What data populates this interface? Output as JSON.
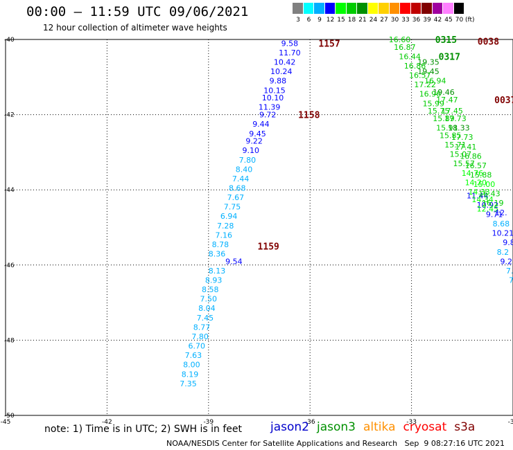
{
  "header": {
    "title": "00:00 — 11:59 UTC 09/06/2021",
    "subtitle": "12 hour collection of altimeter wave heights"
  },
  "legend": {
    "unit": "(ft)",
    "bins": [
      {
        "label": "3",
        "color": "#808080"
      },
      {
        "label": "6",
        "color": "#00ffff"
      },
      {
        "label": "9",
        "color": "#00b0ff"
      },
      {
        "label": "12",
        "color": "#0000ff"
      },
      {
        "label": "15",
        "color": "#00ff00"
      },
      {
        "label": "18",
        "color": "#00cc00"
      },
      {
        "label": "21",
        "color": "#009000"
      },
      {
        "label": "24",
        "color": "#ffff00"
      },
      {
        "label": "27",
        "color": "#ffd000"
      },
      {
        "label": "30",
        "color": "#ff9000"
      },
      {
        "label": "33",
        "color": "#ff0000"
      },
      {
        "label": "36",
        "color": "#c00000"
      },
      {
        "label": "39",
        "color": "#800000"
      },
      {
        "label": "42",
        "color": "#a000a0"
      },
      {
        "label": "45",
        "color": "#ff80ff"
      },
      {
        "label": "70",
        "color": "#000000"
      }
    ]
  },
  "footer": {
    "note": "note:  1) Time is in UTC;  2) SWH is in feet",
    "satellites": [
      {
        "name": "jason2",
        "color": "#0000cc"
      },
      {
        "name": "jason3",
        "color": "#009000"
      },
      {
        "name": "altika",
        "color": "#ff9000"
      },
      {
        "name": "cryosat",
        "color": "#ff0000"
      },
      {
        "name": "s3a",
        "color": "#800000"
      }
    ],
    "credit": "NOAA/NESDIS Center for Satellite Applications and Research   Sep  9 08:27:16 UTC 2021"
  },
  "chart_data": {
    "type": "scatter",
    "xlim": [
      -45,
      -30
    ],
    "ylim": [
      -50,
      -40
    ],
    "x_ticks": [
      {
        "v": -45,
        "label": "-45"
      },
      {
        "v": -42,
        "label": "-42"
      },
      {
        "v": -39,
        "label": "-39"
      },
      {
        "v": -36,
        "label": "-36"
      },
      {
        "v": -33,
        "label": "-33"
      },
      {
        "v": -30,
        "label": "-30"
      }
    ],
    "y_ticks": [
      {
        "v": -40,
        "label": "-40"
      },
      {
        "v": -42,
        "label": "-42"
      },
      {
        "v": -44,
        "label": "-44"
      },
      {
        "v": -46,
        "label": "-46"
      },
      {
        "v": -48,
        "label": "-48"
      },
      {
        "v": -50,
        "label": "-50"
      }
    ],
    "tracks": [
      {
        "name": "jason2",
        "points": [
          {
            "lon": -36.6,
            "lat": -40.1,
            "swh": "9.58"
          },
          {
            "lon": -36.6,
            "lat": -40.35,
            "swh": "11.70"
          },
          {
            "lon": -36.75,
            "lat": -40.6,
            "swh": "10.42"
          },
          {
            "lon": -36.85,
            "lat": -40.85,
            "swh": "10.24"
          },
          {
            "lon": -36.95,
            "lat": -41.1,
            "swh": "9.88"
          },
          {
            "lon": -37.05,
            "lat": -41.35,
            "swh": "10.15"
          },
          {
            "lon": -37.1,
            "lat": -41.55,
            "swh": "10.10"
          },
          {
            "lon": -37.2,
            "lat": -41.8,
            "swh": "11.39"
          },
          {
            "lon": -37.25,
            "lat": -42.0,
            "swh": "9.72"
          },
          {
            "lon": -37.45,
            "lat": -42.25,
            "swh": "9.44"
          },
          {
            "lon": -37.55,
            "lat": -42.5,
            "swh": "9.45"
          },
          {
            "lon": -37.65,
            "lat": -42.7,
            "swh": "9.22"
          },
          {
            "lon": -37.75,
            "lat": -42.95,
            "swh": "9.10"
          },
          {
            "lon": -38.25,
            "lat": -45.9,
            "swh": "9.54"
          },
          {
            "lon": -31.05,
            "lat": -44.15,
            "swh": "11.44"
          },
          {
            "lon": -30.75,
            "lat": -44.4,
            "swh": "10.92"
          },
          {
            "lon": -30.55,
            "lat": -44.65,
            "swh": "9.71"
          },
          {
            "lon": -30.35,
            "lat": -44.9,
            "swh": "8.68"
          },
          {
            "lon": -30.3,
            "lat": -45.15,
            "swh": "10.21"
          },
          {
            "lon": -30.05,
            "lat": -45.4,
            "swh": "9.86"
          }
        ]
      },
      {
        "name": "jason2-cyan",
        "points": [
          {
            "lon": -37.85,
            "lat": -43.2,
            "swh": "7.80"
          },
          {
            "lon": -37.95,
            "lat": -43.45,
            "swh": "8.40"
          },
          {
            "lon": -38.05,
            "lat": -43.7,
            "swh": "7.44"
          },
          {
            "lon": -38.15,
            "lat": -43.95,
            "swh": "8.68"
          },
          {
            "lon": -38.2,
            "lat": -44.2,
            "swh": "7.67"
          },
          {
            "lon": -38.3,
            "lat": -44.45,
            "swh": "7.75"
          },
          {
            "lon": -38.4,
            "lat": -44.7,
            "swh": "6.94"
          },
          {
            "lon": -38.5,
            "lat": -44.95,
            "swh": "7.28"
          },
          {
            "lon": -38.55,
            "lat": -45.2,
            "swh": "7.16"
          },
          {
            "lon": -38.65,
            "lat": -45.45,
            "swh": "8.78"
          },
          {
            "lon": -38.75,
            "lat": -45.7,
            "swh": "8.36"
          },
          {
            "lon": -38.75,
            "lat": -46.15,
            "swh": "8.13"
          },
          {
            "lon": -38.85,
            "lat": -46.4,
            "swh": "8.93"
          },
          {
            "lon": -38.95,
            "lat": -46.65,
            "swh": "8.58"
          },
          {
            "lon": -39.0,
            "lat": -46.9,
            "swh": "7.50"
          },
          {
            "lon": -39.05,
            "lat": -47.15,
            "swh": "8.04"
          },
          {
            "lon": -39.1,
            "lat": -47.4,
            "swh": "7.45"
          },
          {
            "lon": -39.2,
            "lat": -47.65,
            "swh": "8.77"
          },
          {
            "lon": -39.25,
            "lat": -47.9,
            "swh": "7.80"
          },
          {
            "lon": -39.35,
            "lat": -48.15,
            "swh": "6.70"
          },
          {
            "lon": -39.45,
            "lat": -48.4,
            "swh": "7.63"
          },
          {
            "lon": -39.5,
            "lat": -48.65,
            "swh": "8.00"
          },
          {
            "lon": -39.55,
            "lat": -48.9,
            "swh": "8.19"
          },
          {
            "lon": -39.6,
            "lat": -49.15,
            "swh": "7.35"
          },
          {
            "lon": -30.3,
            "lat": -45.65,
            "swh": "8.2"
          },
          {
            "lon": -30.2,
            "lat": -45.9,
            "swh": "9.2"
          },
          {
            "lon": -30.1,
            "lat": -46.15,
            "swh": "7."
          },
          {
            "lon": -30.05,
            "lat": -46.4,
            "swh": "7"
          }
        ]
      },
      {
        "name": "jason3",
        "points": [
          {
            "lon": -33.35,
            "lat": -40.0,
            "swh": "16.60"
          },
          {
            "lon": -33.2,
            "lat": -40.2,
            "swh": "16.87"
          },
          {
            "lon": -33.05,
            "lat": -40.45,
            "swh": "16.44"
          },
          {
            "lon": -32.9,
            "lat": -40.7,
            "swh": "16.86"
          },
          {
            "lon": -32.75,
            "lat": -40.95,
            "swh": "16.57"
          },
          {
            "lon": -32.5,
            "lat": -40.6,
            "swh": "19.35"
          },
          {
            "lon": -32.5,
            "lat": -40.85,
            "swh": "19.45"
          },
          {
            "lon": -32.3,
            "lat": -41.1,
            "swh": "16.94"
          },
          {
            "lon": -32.05,
            "lat": -41.4,
            "swh": "19.46"
          },
          {
            "lon": -32.6,
            "lat": -41.2,
            "swh": "17.22"
          },
          {
            "lon": -32.45,
            "lat": -41.45,
            "swh": "16.96"
          },
          {
            "lon": -32.35,
            "lat": -41.7,
            "swh": "15.99"
          },
          {
            "lon": -32.2,
            "lat": -41.9,
            "swh": "15.75"
          },
          {
            "lon": -31.95,
            "lat": -41.6,
            "swh": "17.47"
          },
          {
            "lon": -31.8,
            "lat": -41.9,
            "swh": "17.45"
          },
          {
            "lon": -32.05,
            "lat": -42.1,
            "swh": "15.89"
          },
          {
            "lon": -31.7,
            "lat": -42.1,
            "swh": "17.73"
          },
          {
            "lon": -31.95,
            "lat": -42.35,
            "swh": "15.91"
          },
          {
            "lon": -31.6,
            "lat": -42.35,
            "swh": "18.33"
          },
          {
            "lon": -31.85,
            "lat": -42.55,
            "swh": "15.85"
          },
          {
            "lon": -31.5,
            "lat": -42.6,
            "swh": "17.73"
          },
          {
            "lon": -31.7,
            "lat": -42.8,
            "swh": "15.71"
          },
          {
            "lon": -31.4,
            "lat": -42.85,
            "swh": "17.41"
          },
          {
            "lon": -31.55,
            "lat": -43.05,
            "swh": "15.07"
          },
          {
            "lon": -31.25,
            "lat": -43.1,
            "swh": "16.86"
          },
          {
            "lon": -31.45,
            "lat": -43.3,
            "swh": "15.57"
          },
          {
            "lon": -31.1,
            "lat": -43.35,
            "swh": "16.57"
          }
        ]
      },
      {
        "name": "jason3-light",
        "points": [
          {
            "lon": -31.2,
            "lat": -43.55,
            "swh": "14.76"
          },
          {
            "lon": -30.95,
            "lat": -43.6,
            "swh": "15.88"
          },
          {
            "lon": -31.1,
            "lat": -43.8,
            "swh": "14.20"
          },
          {
            "lon": -30.85,
            "lat": -43.85,
            "swh": "15.00"
          },
          {
            "lon": -31.0,
            "lat": -44.05,
            "swh": "14.33"
          },
          {
            "lon": -30.7,
            "lat": -44.1,
            "swh": "16.43"
          },
          {
            "lon": -30.9,
            "lat": -44.25,
            "swh": "14.34"
          },
          {
            "lon": -30.6,
            "lat": -44.35,
            "swh": "16.19"
          },
          {
            "lon": -30.75,
            "lat": -44.5,
            "swh": "12.45"
          },
          {
            "lon": -30.35,
            "lat": -44.6,
            "swh": "12."
          }
        ]
      }
    ],
    "time_labels": [
      {
        "text": "1157",
        "lon": -35.75,
        "lat": -40.1,
        "color": "#800000"
      },
      {
        "text": "1158",
        "lon": -36.35,
        "lat": -42.0,
        "color": "#800000"
      },
      {
        "text": "1159",
        "lon": -37.55,
        "lat": -45.5,
        "color": "#800000"
      },
      {
        "text": "0315",
        "lon": -32.3,
        "lat": -40.0,
        "color": "#009000"
      },
      {
        "text": "0317",
        "lon": -32.2,
        "lat": -40.45,
        "color": "#009000"
      },
      {
        "text": "0038",
        "lon": -31.05,
        "lat": -40.05,
        "color": "#800000"
      },
      {
        "text": "0037",
        "lon": -30.55,
        "lat": -41.6,
        "color": "#800000"
      },
      {
        "text": "031",
        "lon": -30.0,
        "lat": -42.95,
        "color": "#009000"
      }
    ]
  }
}
